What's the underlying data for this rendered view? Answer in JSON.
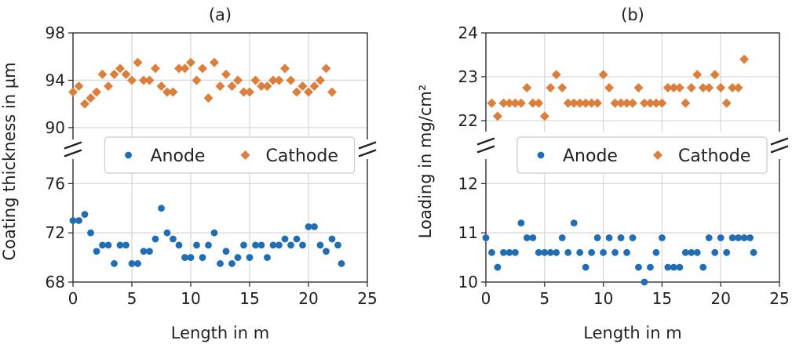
{
  "chart_data": [
    {
      "type": "scatter",
      "title": "(a)",
      "xlabel": "Length in m",
      "ylabel": "Coating thickness in µm",
      "xlim": [
        0,
        25
      ],
      "xticks": [
        "0",
        "5",
        "10",
        "15",
        "20",
        "25"
      ],
      "broken_axis": true,
      "upper": {
        "ylim": [
          89,
          98
        ],
        "yticks": [
          "90",
          "94",
          "98"
        ]
      },
      "lower": {
        "ylim": [
          68,
          78
        ],
        "yticks": [
          "68",
          "72",
          "76"
        ]
      },
      "legend": {
        "placement": "center",
        "entries": [
          "Anode",
          "Cathode"
        ]
      },
      "grid": true,
      "series": [
        {
          "name": "Cathode",
          "marker": "diamond",
          "color": "#dd7f3c",
          "x": [
            0,
            0.5,
            1,
            1.5,
            2,
            2.5,
            3,
            3.5,
            4,
            4.5,
            5,
            5.5,
            6,
            6.5,
            7,
            7.5,
            8,
            8.5,
            9,
            9.5,
            10,
            10.5,
            11,
            11.5,
            12,
            12.5,
            13,
            13.5,
            14,
            14.5,
            15,
            15.5,
            16,
            16.5,
            17,
            17.5,
            18,
            18.5,
            19,
            19.5,
            20,
            20.5,
            21,
            21.5,
            22
          ],
          "y": [
            93,
            93.5,
            92,
            92.5,
            93,
            94.5,
            93.5,
            94.5,
            95,
            94.5,
            94,
            95.5,
            94,
            94,
            95,
            93.5,
            93,
            93,
            95,
            95,
            95.5,
            94,
            95,
            92.5,
            95.5,
            93.5,
            94.5,
            93.5,
            94,
            93,
            93,
            94,
            93.5,
            93.5,
            94,
            94,
            95,
            94,
            93,
            93.5,
            93,
            93.5,
            94,
            95,
            93
          ]
        },
        {
          "name": "Anode",
          "marker": "circle",
          "color": "#1f6eb5",
          "x": [
            0,
            0.5,
            1,
            1.5,
            2,
            2.5,
            3,
            3.5,
            4,
            4.5,
            5,
            5.5,
            6,
            6.5,
            7,
            7.5,
            8,
            8.5,
            9,
            9.5,
            10,
            10.5,
            11,
            11.5,
            12,
            12.5,
            13,
            13.5,
            14,
            14.5,
            15,
            15.5,
            16,
            16.5,
            17,
            17.5,
            18,
            18.5,
            19,
            19.5,
            20,
            20.5,
            21,
            21.5,
            22,
            22.5,
            22.8
          ],
          "y": [
            73,
            73,
            73.5,
            72,
            70.5,
            71,
            71,
            69.5,
            71,
            71,
            69.5,
            69.5,
            70.5,
            70.5,
            71.5,
            74,
            72,
            71.5,
            71,
            70,
            70,
            71,
            70,
            71,
            72,
            69.5,
            70.5,
            69.5,
            70,
            71,
            70,
            71,
            71,
            70,
            71,
            71,
            71.5,
            71,
            71.5,
            71,
            72.5,
            72.5,
            71,
            70.5,
            71.5,
            71,
            69.5
          ]
        }
      ]
    },
    {
      "type": "scatter",
      "title": "(b)",
      "xlabel": "Length in m",
      "ylabel": "Loading in mg/cm²",
      "xlim": [
        0,
        25
      ],
      "xticks": [
        "0",
        "5",
        "10",
        "15",
        "20",
        "25"
      ],
      "broken_axis": true,
      "upper": {
        "ylim": [
          21.75,
          24
        ],
        "yticks": [
          "22",
          "23",
          "24"
        ]
      },
      "lower": {
        "ylim": [
          10,
          12.5
        ],
        "yticks": [
          "10",
          "11",
          "12"
        ]
      },
      "legend": {
        "placement": "center",
        "entries": [
          "Anode",
          "Cathode"
        ]
      },
      "grid": true,
      "series": [
        {
          "name": "Cathode",
          "marker": "diamond",
          "color": "#dd7f3c",
          "x": [
            0.5,
            1,
            1.5,
            2,
            2.5,
            3,
            3.5,
            4,
            4.5,
            5,
            5.5,
            6,
            6.5,
            7,
            7.5,
            8,
            8.5,
            9,
            9.5,
            10,
            10.5,
            11,
            11.5,
            12,
            12.5,
            13,
            13.5,
            14,
            14.5,
            15,
            15.5,
            16,
            16.5,
            17,
            17.5,
            18,
            18.5,
            19,
            19.5,
            20,
            20.5,
            21,
            21.5,
            22
          ],
          "y": [
            22.4,
            22.1,
            22.4,
            22.4,
            22.4,
            22.4,
            22.75,
            22.4,
            22.4,
            22.1,
            22.75,
            23.05,
            22.75,
            22.4,
            22.4,
            22.4,
            22.4,
            22.4,
            22.4,
            23.05,
            22.75,
            22.4,
            22.4,
            22.4,
            22.4,
            22.75,
            22.4,
            22.4,
            22.4,
            22.4,
            22.75,
            22.75,
            22.75,
            22.4,
            22.75,
            23.05,
            22.75,
            22.75,
            23.05,
            22.75,
            22.4,
            22.75,
            22.75,
            23.4
          ]
        },
        {
          "name": "Anode",
          "marker": "circle",
          "color": "#1f6eb5",
          "x": [
            0,
            0.5,
            1,
            1.5,
            2,
            2.5,
            3,
            3.5,
            4,
            4.5,
            5,
            5.5,
            6,
            6.5,
            7,
            7.5,
            8,
            8.5,
            9,
            9.5,
            10,
            10.5,
            11,
            11.5,
            12,
            12.5,
            13,
            13.5,
            14,
            14.5,
            15,
            15.5,
            16,
            16.5,
            17,
            17.5,
            18,
            18.5,
            19,
            19.5,
            20,
            20.5,
            21,
            21.5,
            22,
            22.5,
            22.8
          ],
          "y": [
            10.9,
            10.6,
            10.3,
            10.6,
            10.6,
            10.6,
            11.2,
            10.9,
            10.9,
            10.6,
            10.6,
            10.6,
            10.6,
            10.9,
            10.6,
            11.2,
            10.6,
            10.3,
            10.6,
            10.9,
            10.6,
            10.9,
            10.6,
            10.9,
            10.6,
            10.9,
            10.3,
            10.0,
            10.3,
            10.6,
            10.9,
            10.3,
            10.3,
            10.3,
            10.6,
            10.6,
            10.6,
            10.3,
            10.9,
            10.6,
            10.9,
            10.6,
            10.9,
            10.9,
            10.9,
            10.9,
            10.6
          ]
        }
      ]
    }
  ]
}
